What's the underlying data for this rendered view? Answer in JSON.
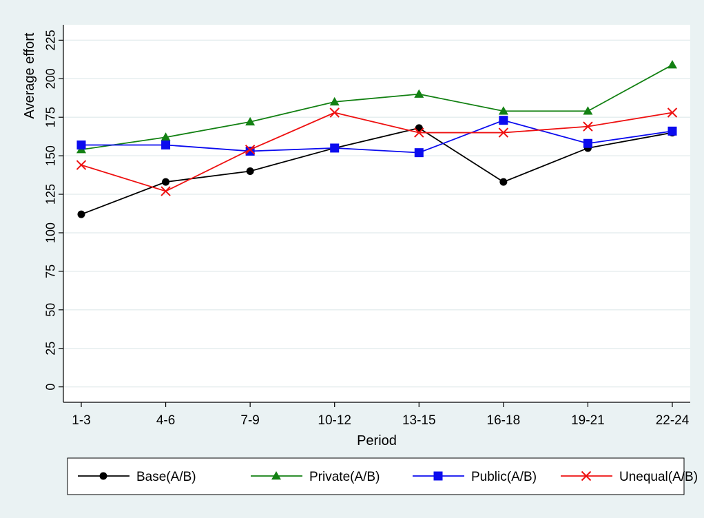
{
  "chart_data": {
    "type": "line",
    "title": "",
    "xlabel": "Period",
    "ylabel": "Average effort",
    "categories": [
      "1-3",
      "4-6",
      "7-9",
      "10-12",
      "13-15",
      "16-18",
      "19-21",
      "22-24"
    ],
    "yticks": [
      0,
      25,
      50,
      75,
      100,
      125,
      150,
      175,
      200,
      225
    ],
    "ylim": [
      -10,
      235
    ],
    "grid": true,
    "legend_position": "bottom",
    "series": [
      {
        "name": "Base(A/B)",
        "color": "#000000",
        "marker": "circle",
        "values": [
          112,
          133,
          140,
          155,
          168,
          133,
          155,
          165
        ]
      },
      {
        "name": "Private(A/B)",
        "color": "#138113",
        "marker": "triangle",
        "values": [
          154,
          162,
          172,
          185,
          190,
          179,
          179,
          209
        ]
      },
      {
        "name": "Public(A/B)",
        "color": "#0b0bef",
        "marker": "square",
        "values": [
          157,
          157,
          153,
          155,
          152,
          173,
          158,
          166
        ]
      },
      {
        "name": "Unequal(A/B)",
        "color": "#ee1111",
        "marker": "x",
        "values": [
          144,
          127,
          154,
          178,
          165,
          165,
          169,
          178
        ]
      }
    ]
  }
}
